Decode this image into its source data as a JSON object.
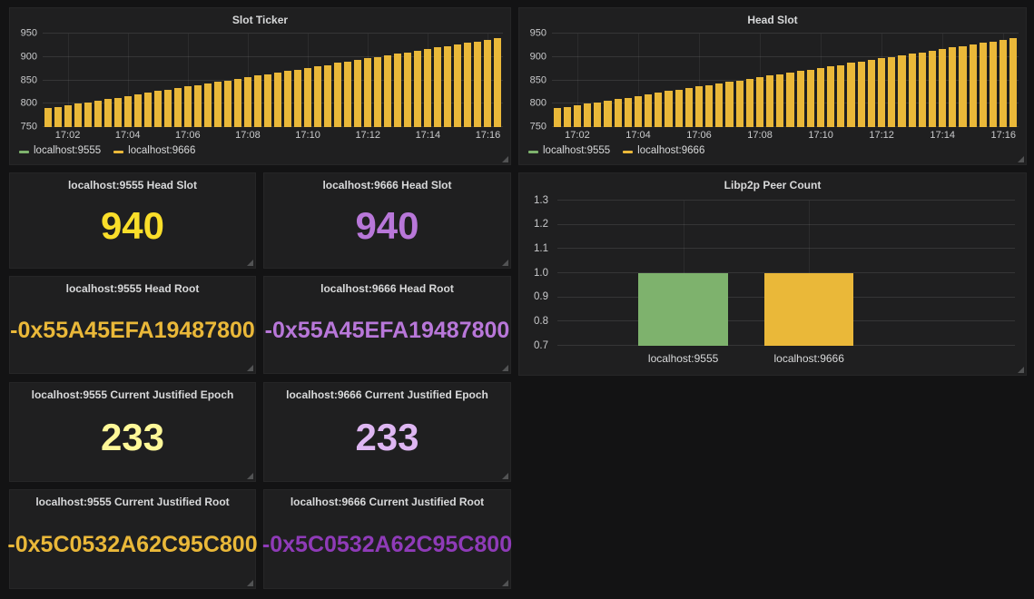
{
  "page": {
    "background": "#131314",
    "panel_background": "#1f1f20",
    "title_color": "#d8d9da",
    "tick_color": "#c9cacc"
  },
  "panels": {
    "stats": [
      {
        "title": "localhost:9555 Head Slot",
        "value": "940",
        "color": "#FADE2A"
      },
      {
        "title": "localhost:9666 Head Slot",
        "value": "940",
        "color": "#B877D9"
      },
      {
        "title": "localhost:9555 Head Root",
        "value": "-0x55A45EFA19487800",
        "color": "#EAB839"
      },
      {
        "title": "localhost:9666 Head Root",
        "value": "-0x55A45EFA19487800",
        "color": "#B877D9"
      },
      {
        "title": "localhost:9555 Current Justified Epoch",
        "value": "233",
        "color": "#FFF899"
      },
      {
        "title": "localhost:9666 Current Justified Epoch",
        "value": "233",
        "color": "#DEB6F2"
      },
      {
        "title": "localhost:9555 Current Justified Root",
        "value": "-0x5C0532A62C95C800",
        "color": "#EAB839"
      },
      {
        "title": "localhost:9666 Current Justified Root",
        "value": "-0x5C0532A62C95C800",
        "color": "#8F3BB8"
      }
    ]
  },
  "chart_data": [
    {
      "id": "slot-ticker",
      "type": "bar",
      "title": "Slot Ticker",
      "ylim": [
        750,
        950
      ],
      "yticks": [
        750,
        800,
        850,
        900,
        950
      ],
      "tick_decimals": 0,
      "xticks": [
        {
          "label": "17:02",
          "index": 2
        },
        {
          "label": "17:04",
          "index": 8
        },
        {
          "label": "17:06",
          "index": 14
        },
        {
          "label": "17:08",
          "index": 20
        },
        {
          "label": "17:10",
          "index": 26
        },
        {
          "label": "17:12",
          "index": 32
        },
        {
          "label": "17:14",
          "index": 38
        },
        {
          "label": "17:16",
          "index": 44
        }
      ],
      "series": [
        {
          "name": "localhost:9555",
          "color": "#7EB26D",
          "values": [
            790,
            793,
            797,
            800,
            803,
            807,
            810,
            813,
            817,
            820,
            823,
            827,
            830,
            833,
            837,
            840,
            843,
            847,
            850,
            853,
            857,
            860,
            863,
            867,
            870,
            873,
            877,
            880,
            883,
            887,
            890,
            893,
            897,
            900,
            903,
            907,
            910,
            913,
            917,
            920,
            923,
            927,
            930,
            933,
            937,
            940
          ]
        },
        {
          "name": "localhost:9666",
          "color": "#EAB839",
          "values": [
            790,
            793,
            797,
            800,
            803,
            807,
            810,
            813,
            817,
            820,
            823,
            827,
            830,
            833,
            837,
            840,
            843,
            847,
            850,
            853,
            857,
            860,
            863,
            867,
            870,
            873,
            877,
            880,
            883,
            887,
            890,
            893,
            897,
            900,
            903,
            907,
            910,
            913,
            917,
            920,
            923,
            927,
            930,
            933,
            937,
            940
          ]
        }
      ],
      "legend_position": "bottom-left",
      "grid": true
    },
    {
      "id": "head-slot",
      "type": "bar",
      "title": "Head Slot",
      "ylim": [
        750,
        950
      ],
      "yticks": [
        750,
        800,
        850,
        900,
        950
      ],
      "tick_decimals": 0,
      "xticks": [
        {
          "label": "17:02",
          "index": 2
        },
        {
          "label": "17:04",
          "index": 8
        },
        {
          "label": "17:06",
          "index": 14
        },
        {
          "label": "17:08",
          "index": 20
        },
        {
          "label": "17:10",
          "index": 26
        },
        {
          "label": "17:12",
          "index": 32
        },
        {
          "label": "17:14",
          "index": 38
        },
        {
          "label": "17:16",
          "index": 44
        }
      ],
      "series": [
        {
          "name": "localhost:9555",
          "color": "#7EB26D",
          "values": [
            790,
            793,
            797,
            800,
            803,
            807,
            810,
            813,
            817,
            820,
            823,
            827,
            830,
            833,
            837,
            840,
            843,
            847,
            850,
            853,
            857,
            860,
            863,
            867,
            870,
            873,
            877,
            880,
            883,
            887,
            890,
            893,
            897,
            900,
            903,
            907,
            910,
            913,
            917,
            920,
            923,
            927,
            930,
            933,
            937,
            940
          ]
        },
        {
          "name": "localhost:9666",
          "color": "#EAB839",
          "values": [
            790,
            793,
            797,
            800,
            803,
            807,
            810,
            813,
            817,
            820,
            823,
            827,
            830,
            833,
            837,
            840,
            843,
            847,
            850,
            853,
            857,
            860,
            863,
            867,
            870,
            873,
            877,
            880,
            883,
            887,
            890,
            893,
            897,
            900,
            903,
            907,
            910,
            913,
            917,
            920,
            923,
            927,
            930,
            933,
            937,
            940
          ]
        }
      ],
      "legend_position": "bottom-left",
      "grid": true
    },
    {
      "id": "libp2p-peer-count",
      "type": "bar",
      "title": "Libp2p Peer Count",
      "categories": [
        "localhost:9555",
        "localhost:9666"
      ],
      "values": [
        1.0,
        1.0
      ],
      "bar_colors": [
        "#7EB26D",
        "#EAB839"
      ],
      "ylim": [
        0.7,
        1.3
      ],
      "yticks": [
        0.7,
        0.8,
        0.9,
        1.0,
        1.1,
        1.2,
        1.3
      ],
      "tick_decimals": 1,
      "legend_position": "none",
      "grid": true
    }
  ]
}
